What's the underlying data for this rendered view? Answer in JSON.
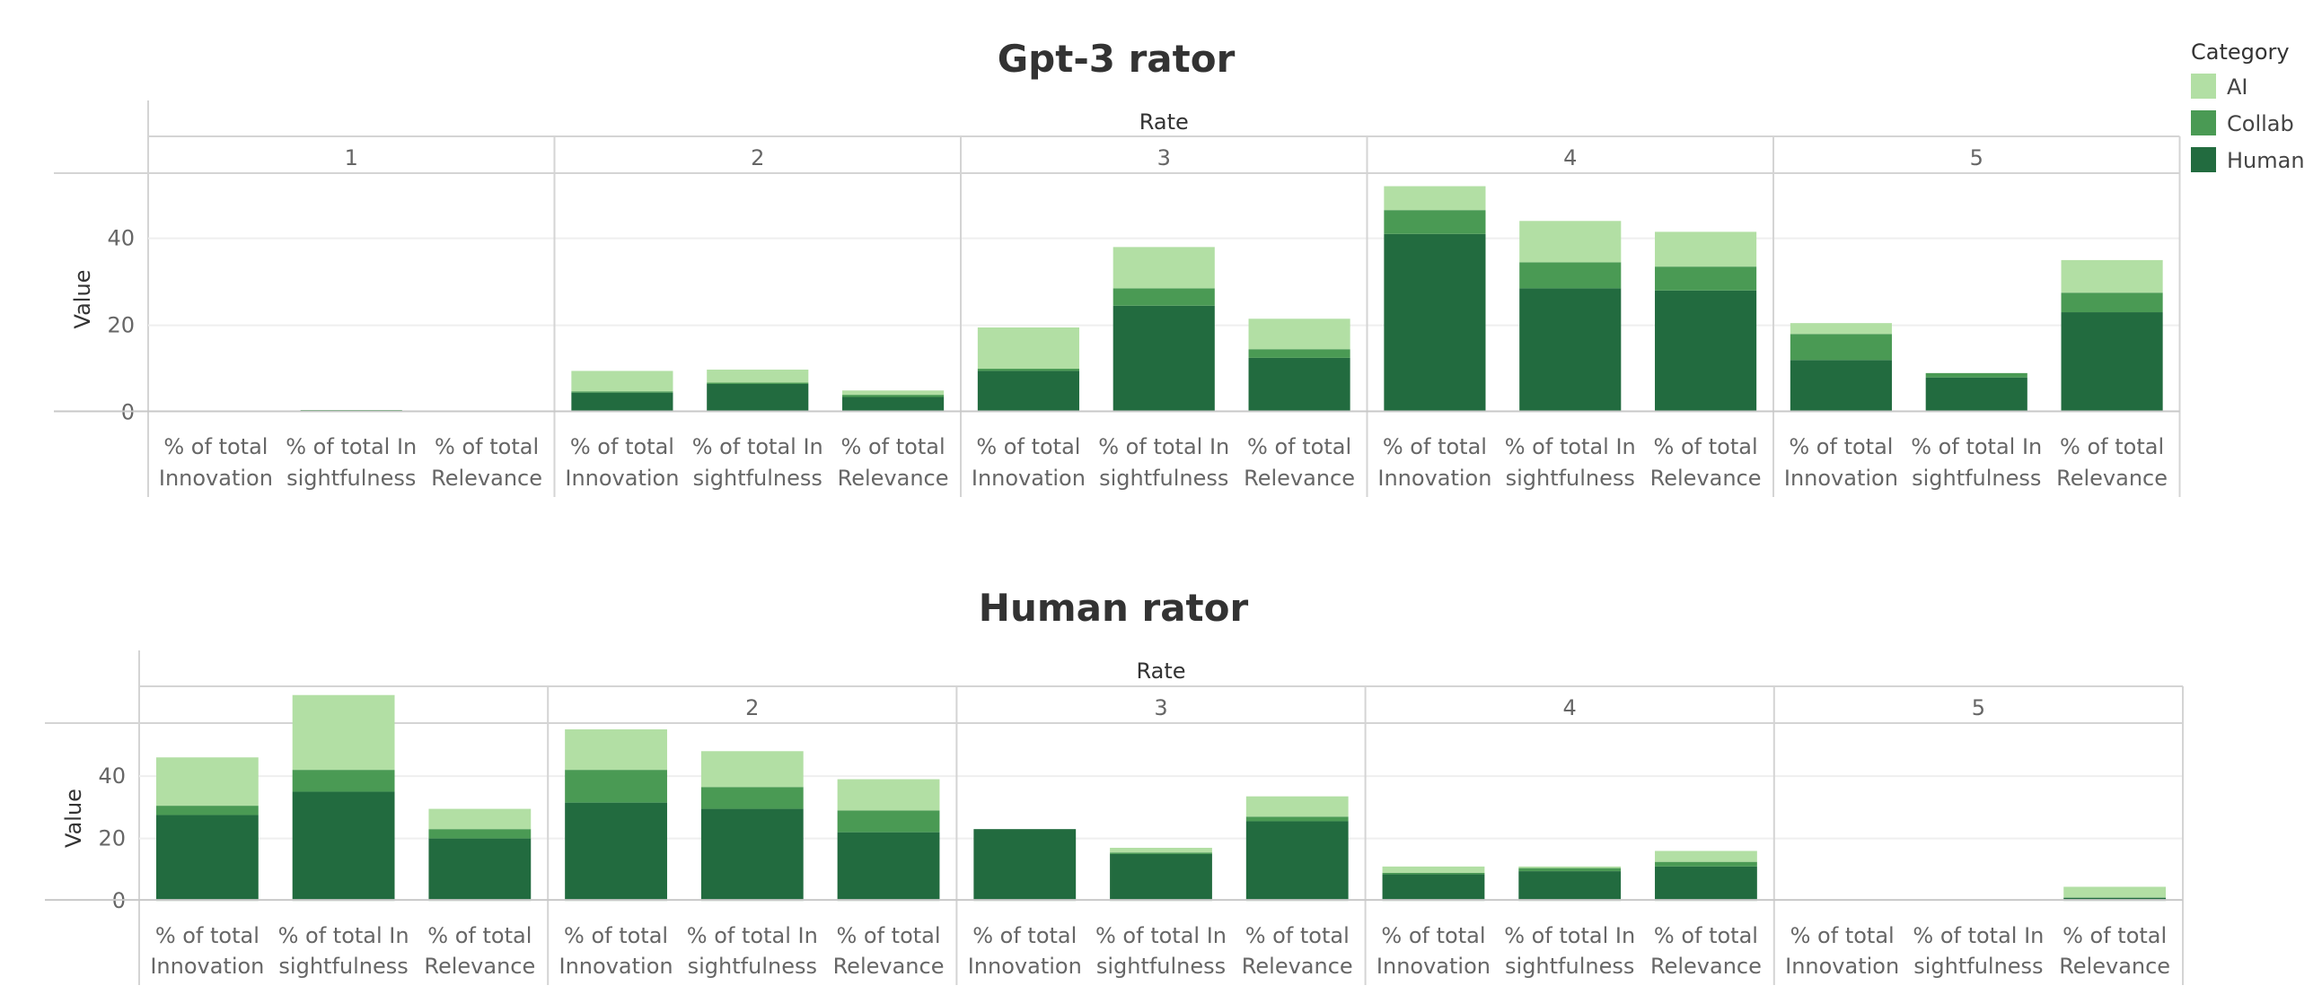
{
  "legend": {
    "title": "Category",
    "items": [
      {
        "label": "AI",
        "color": "#b2dfa4"
      },
      {
        "label": "Collab",
        "color": "#4a9a54"
      },
      {
        "label": "Human",
        "color": "#226b3f"
      }
    ]
  },
  "chart_data": [
    {
      "type": "bar",
      "stacked": true,
      "title": "Gpt-3 rator",
      "facet_title": "Rate",
      "facets": [
        "1",
        "2",
        "3",
        "4",
        "5"
      ],
      "categories": [
        "% of total Innovation",
        "% of total In sightfulness",
        "% of total Relevance"
      ],
      "category_lines": [
        [
          "% of total",
          "Innovation"
        ],
        [
          "% of total In",
          "sightfulness"
        ],
        [
          "% of total",
          "Relevance"
        ]
      ],
      "ylabel": "Value",
      "yticks": [
        0,
        20,
        40
      ],
      "ylim": [
        -3,
        55
      ],
      "gridlines": true,
      "series": [
        {
          "name": "Human",
          "values": [
            [
              0,
              0.3,
              0
            ],
            [
              4.5,
              6.5,
              3.5
            ],
            [
              9.5,
              24.5,
              12.5
            ],
            [
              41,
              28.5,
              28
            ],
            [
              12,
              8,
              23
            ]
          ]
        },
        {
          "name": "Collab",
          "values": [
            [
              0,
              0.2,
              0
            ],
            [
              0.3,
              0.3,
              0.5
            ],
            [
              0.5,
              4,
              2
            ],
            [
              5.5,
              6,
              5.5
            ],
            [
              6,
              1,
              4.5
            ]
          ]
        },
        {
          "name": "AI",
          "values": [
            [
              0,
              0,
              0
            ],
            [
              4.7,
              3,
              1
            ],
            [
              9.5,
              9.5,
              7
            ],
            [
              5.5,
              9.5,
              8
            ],
            [
              2.5,
              0,
              7.5
            ]
          ]
        }
      ]
    },
    {
      "type": "bar",
      "stacked": true,
      "title": "Human rator",
      "facet_title": "Rate",
      "facets": [
        "1",
        "2",
        "3",
        "4",
        "5"
      ],
      "categories": [
        "% of total Innovation",
        "% of total In sightfulness",
        "% of total Relevance"
      ],
      "category_lines": [
        [
          "% of total",
          "Innovation"
        ],
        [
          "% of total In",
          "sightfulness"
        ],
        [
          "% of total",
          "Relevance"
        ]
      ],
      "ylabel": "Value",
      "yticks": [
        0,
        20,
        40
      ],
      "ylim": [
        -4,
        57
      ],
      "gridlines": true,
      "series": [
        {
          "name": "Human",
          "values": [
            [
              27.5,
              35,
              20
            ],
            [
              31.5,
              29.5,
              22
            ],
            [
              23,
              15,
              25.5
            ],
            [
              8.5,
              9.5,
              11
            ],
            [
              0,
              0,
              1
            ]
          ]
        },
        {
          "name": "Collab",
          "values": [
            [
              3,
              7,
              3
            ],
            [
              10.5,
              7,
              7
            ],
            [
              0,
              0.5,
              1.5
            ],
            [
              0.5,
              1,
              1.5
            ],
            [
              0,
              0,
              0
            ]
          ]
        },
        {
          "name": "AI",
          "values": [
            [
              15.5,
              24,
              6.5
            ],
            [
              13,
              11.5,
              10
            ],
            [
              0,
              1.5,
              6.5
            ],
            [
              2,
              0.5,
              3.5
            ],
            [
              0,
              0,
              3.5
            ]
          ]
        }
      ]
    }
  ]
}
